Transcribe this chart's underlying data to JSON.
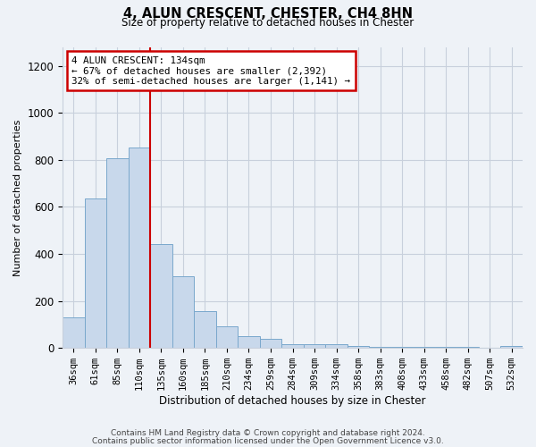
{
  "title_line1": "4, ALUN CRESCENT, CHESTER, CH4 8HN",
  "title_line2": "Size of property relative to detached houses in Chester",
  "xlabel": "Distribution of detached houses by size in Chester",
  "ylabel": "Number of detached properties",
  "bar_labels": [
    "36sqm",
    "61sqm",
    "85sqm",
    "110sqm",
    "135sqm",
    "160sqm",
    "185sqm",
    "210sqm",
    "234sqm",
    "259sqm",
    "284sqm",
    "309sqm",
    "334sqm",
    "358sqm",
    "383sqm",
    "408sqm",
    "433sqm",
    "458sqm",
    "482sqm",
    "507sqm",
    "532sqm"
  ],
  "bar_values": [
    130,
    637,
    805,
    851,
    440,
    305,
    158,
    93,
    50,
    37,
    17,
    17,
    17,
    10,
    5,
    5,
    3,
    3,
    3,
    0,
    10
  ],
  "bar_color": "#c8d8eb",
  "bar_edge_color": "#7aa8cc",
  "vline_index": 3,
  "annotation_text": "4 ALUN CRESCENT: 134sqm\n← 67% of detached houses are smaller (2,392)\n32% of semi-detached houses are larger (1,141) →",
  "annotation_box_color": "#ffffff",
  "annotation_box_edge_color": "#cc0000",
  "vline_color": "#cc0000",
  "ylim": [
    0,
    1280
  ],
  "yticks": [
    0,
    200,
    400,
    600,
    800,
    1000,
    1200
  ],
  "grid_color": "#c8d0dc",
  "footer_line1": "Contains HM Land Registry data © Crown copyright and database right 2024.",
  "footer_line2": "Contains public sector information licensed under the Open Government Licence v3.0.",
  "bg_color": "#eef2f7",
  "plot_bg_color": "#eef2f7"
}
